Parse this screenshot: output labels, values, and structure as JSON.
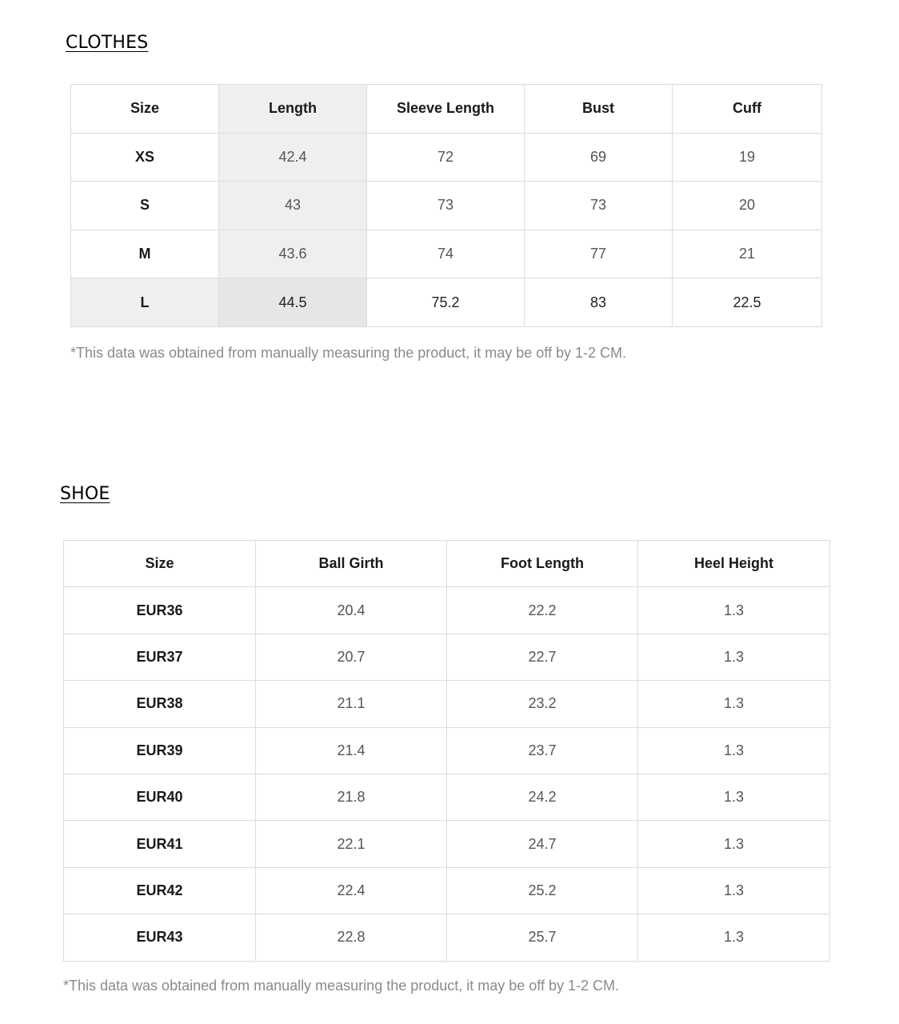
{
  "clothes": {
    "title": "CLOTHES",
    "headers": [
      "Size",
      "Length",
      "Sleeve Length",
      "Bust",
      "Cuff"
    ],
    "rows": [
      {
        "size": "XS",
        "values": [
          "42.4",
          "72",
          "69",
          "19"
        ]
      },
      {
        "size": "S",
        "values": [
          "43",
          "73",
          "73",
          "20"
        ]
      },
      {
        "size": "M",
        "values": [
          "43.6",
          "74",
          "77",
          "21"
        ]
      },
      {
        "size": "L",
        "values": [
          "44.5",
          "75.2",
          "83",
          "22.5"
        ]
      }
    ],
    "note": "*This data was obtained from manually measuring the product, it may be off by 1-2 CM."
  },
  "shoe": {
    "title": "SHOE",
    "headers": [
      "Size",
      "Ball Girth",
      "Foot Length",
      "Heel Height"
    ],
    "rows": [
      {
        "size": "EUR36",
        "values": [
          "20.4",
          "22.2",
          "1.3"
        ]
      },
      {
        "size": "EUR37",
        "values": [
          "20.7",
          "22.7",
          "1.3"
        ]
      },
      {
        "size": "EUR38",
        "values": [
          "21.1",
          "23.2",
          "1.3"
        ]
      },
      {
        "size": "EUR39",
        "values": [
          "21.4",
          "23.7",
          "1.3"
        ]
      },
      {
        "size": "EUR40",
        "values": [
          "21.8",
          "24.2",
          "1.3"
        ]
      },
      {
        "size": "EUR41",
        "values": [
          "22.1",
          "24.7",
          "1.3"
        ]
      },
      {
        "size": "EUR42",
        "values": [
          "22.4",
          "25.2",
          "1.3"
        ]
      },
      {
        "size": "EUR43",
        "values": [
          "22.8",
          "25.7",
          "1.3"
        ]
      }
    ],
    "note": "*This data was obtained from manually measuring the product, it may be off by 1-2 CM."
  },
  "colors": {
    "border": "#dcdcdc",
    "highlight": "#efefef",
    "note_text": "#8a8a8a"
  }
}
